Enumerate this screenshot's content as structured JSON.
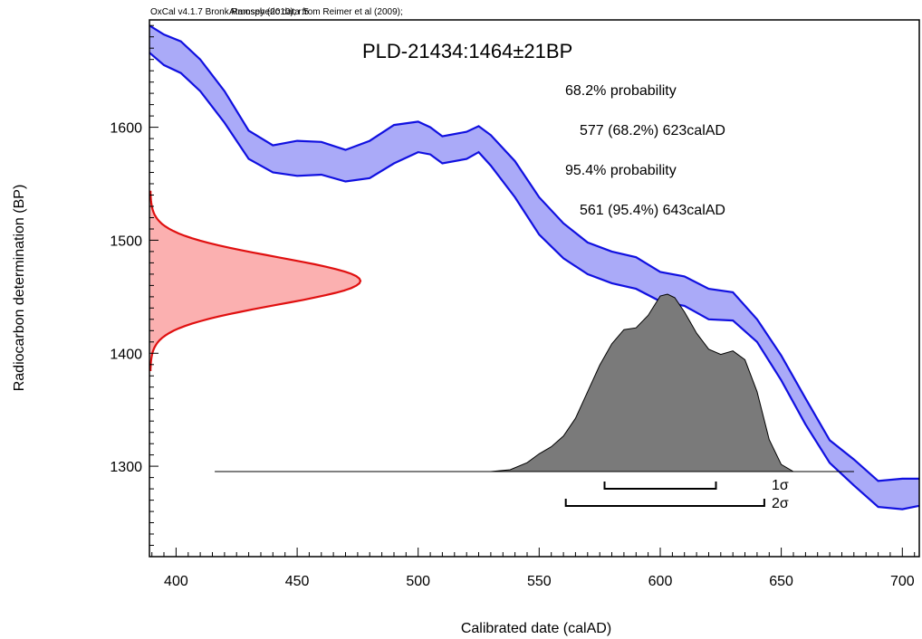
{
  "header": {
    "credit": "OxCal v4.1.7 Bronk Ramsey (2010); r:5",
    "atmos": "Atmospheric data from Reimer et al (2009);"
  },
  "colors": {
    "curve_fill": "#aaaaf8",
    "curve_line": "#1010e0",
    "prior_fill": "#fbb0b0",
    "prior_line": "#e01010",
    "posterior_fill": "#7a7a7a"
  },
  "chart_data": {
    "type": "area",
    "title": "PLD-21434:1464±21BP",
    "xlabel": "Calibrated date (calAD)",
    "ylabel": "Radiocarbon determination (BP)",
    "xlim": [
      389,
      707
    ],
    "ylim": [
      1220,
      1695
    ],
    "x_ticks": [
      "400",
      "450",
      "500",
      "550",
      "600",
      "650",
      "700"
    ],
    "y_ticks": [
      "1300",
      "1400",
      "1500",
      "1600"
    ],
    "grid": false,
    "annotations": {
      "p68_heading": "68.2% probability",
      "p68_range": "577 (68.2%) 623calAD",
      "p95_heading": "95.4% probability",
      "p95_range": "561 (95.4%) 643calAD",
      "sigma1": "1σ",
      "sigma2": "2σ"
    },
    "ranges": {
      "one_sigma": [
        577,
        623
      ],
      "two_sigma": [
        561,
        643
      ]
    },
    "calibration_curve": {
      "x": [
        389,
        395,
        402,
        410,
        420,
        430,
        440,
        450,
        460,
        470,
        480,
        490,
        500,
        505,
        510,
        520,
        525,
        530,
        540,
        550,
        560,
        570,
        580,
        590,
        600,
        610,
        620,
        630,
        640,
        650,
        660,
        670,
        680,
        690,
        700,
        707
      ],
      "upper": [
        1690,
        1682,
        1676,
        1660,
        1632,
        1597,
        1584,
        1588,
        1587,
        1580,
        1588,
        1602,
        1605,
        1600,
        1592,
        1596,
        1601,
        1593,
        1570,
        1538,
        1515,
        1498,
        1490,
        1485,
        1472,
        1468,
        1457,
        1454,
        1430,
        1398,
        1360,
        1323,
        1306,
        1287,
        1289,
        1289
      ],
      "lower": [
        1666,
        1655,
        1648,
        1632,
        1604,
        1572,
        1560,
        1557,
        1558,
        1552,
        1555,
        1568,
        1578,
        1576,
        1568,
        1572,
        1578,
        1566,
        1538,
        1505,
        1484,
        1470,
        1462,
        1457,
        1446,
        1442,
        1430,
        1429,
        1410,
        1376,
        1337,
        1303,
        1283,
        1264,
        1262,
        1265
      ]
    },
    "radiocarbon_distribution": {
      "mean_bp": 1464,
      "sigma_bp": 21
    },
    "posterior": {
      "x": [
        416,
        530,
        538,
        545,
        550,
        555,
        560,
        565,
        570,
        575,
        580,
        585,
        590,
        595,
        600,
        603,
        606,
        610,
        615,
        620,
        625,
        630,
        635,
        640,
        645,
        650,
        655,
        680
      ],
      "density": [
        0,
        0,
        0.01,
        0.05,
        0.1,
        0.14,
        0.2,
        0.3,
        0.45,
        0.6,
        0.72,
        0.8,
        0.81,
        0.88,
        0.99,
        1.0,
        0.98,
        0.9,
        0.78,
        0.69,
        0.66,
        0.68,
        0.63,
        0.45,
        0.18,
        0.04,
        0,
        0
      ]
    }
  }
}
